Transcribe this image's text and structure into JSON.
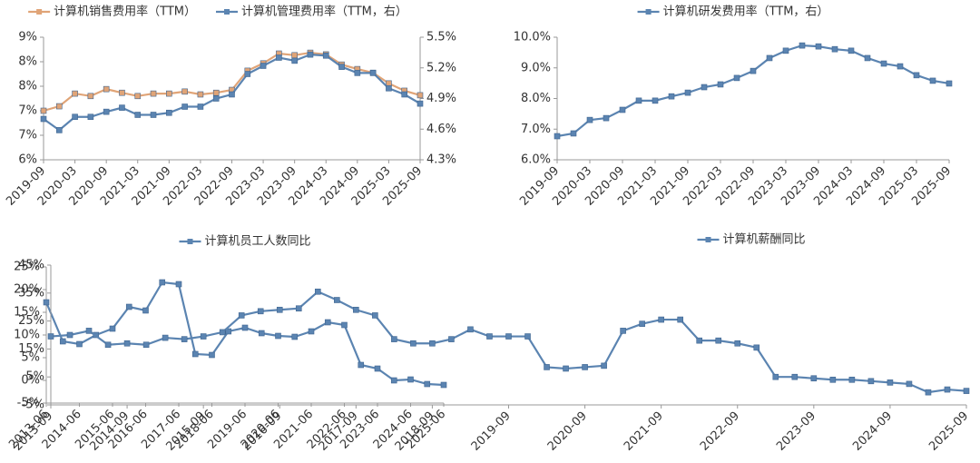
{
  "chart_data": [
    {
      "type": "line",
      "categories": [
        "2019-09",
        null,
        "2020-03",
        null,
        "2020-09",
        null,
        "2021-03",
        null,
        "2021-09",
        null,
        "2022-03",
        null,
        "2022-09",
        null,
        "2023-03",
        null,
        "2023-09",
        null,
        "2024-03",
        null,
        "2024-09",
        null,
        "2025-03",
        null,
        "2025-09"
      ],
      "series": [
        {
          "name": "计算机销售费用率（TTM）",
          "color": "#e0a477",
          "values": [
            7.2,
            7.31,
            7.62,
            7.56,
            7.73,
            7.64,
            7.56,
            7.62,
            7.62,
            7.67,
            7.6,
            7.64,
            7.71,
            8.18,
            8.36,
            8.6,
            8.56,
            8.62,
            8.58,
            8.33,
            8.22,
            8.13,
            7.87,
            7.69,
            7.58
          ]
        },
        {
          "name": "计算机管理费用率（TTM，右）",
          "color": "#5b84b1",
          "axis": "y2",
          "values": [
            4.7,
            4.59,
            4.72,
            4.72,
            4.77,
            4.81,
            4.74,
            4.74,
            4.76,
            4.82,
            4.82,
            4.9,
            4.94,
            5.14,
            5.22,
            5.3,
            5.27,
            5.33,
            5.32,
            5.21,
            5.15,
            5.15,
            5.0,
            4.94,
            4.85
          ]
        }
      ],
      "ylim": [
        6,
        9
      ],
      "yticks": [
        {
          "value": 6,
          "label": "6%"
        },
        {
          "value": 6.6,
          "label": "7%"
        },
        {
          "value": 7.2,
          "label": "7%"
        },
        {
          "value": 7.8,
          "label": "8%"
        },
        {
          "value": 8.4,
          "label": "8%"
        },
        {
          "value": 9,
          "label": "9%"
        }
      ],
      "y2lim": [
        4.3,
        5.5
      ],
      "y2ticks": [
        {
          "value": 4.3,
          "label": "4.3%"
        },
        {
          "value": 4.6,
          "label": "4.6%"
        },
        {
          "value": 4.9,
          "label": "4.9%"
        },
        {
          "value": 5.2,
          "label": "5.2%"
        },
        {
          "value": 5.5,
          "label": "5.5%"
        }
      ],
      "grid": false
    },
    {
      "type": "line",
      "categories": [
        "2019-09",
        null,
        "2020-03",
        null,
        "2020-09",
        null,
        "2021-03",
        null,
        "2021-09",
        null,
        "2022-03",
        null,
        "2022-09",
        null,
        "2023-03",
        null,
        "2023-09",
        null,
        "2024-03",
        null,
        "2024-09",
        null,
        "2025-03",
        null,
        "2025-09"
      ],
      "series": [
        {
          "name": "计算机研发费用率（TTM，右）",
          "color": "#5b84b1",
          "values": [
            6.77,
            6.86,
            7.3,
            7.36,
            7.63,
            7.93,
            7.93,
            8.07,
            8.19,
            8.37,
            8.46,
            8.67,
            8.9,
            9.32,
            9.56,
            9.73,
            9.7,
            9.61,
            9.56,
            9.32,
            9.14,
            9.05,
            8.76,
            8.58,
            8.49
          ]
        }
      ],
      "ylim": [
        6,
        10
      ],
      "yticks": [
        {
          "value": 6,
          "label": "6.0%"
        },
        {
          "value": 7,
          "label": "7.0%"
        },
        {
          "value": 8,
          "label": "8.0%"
        },
        {
          "value": 9,
          "label": "9.0%"
        },
        {
          "value": 10,
          "label": "10.0%"
        }
      ],
      "grid": false
    },
    {
      "type": "line",
      "categories": [
        "2013-06",
        null,
        "2014-06",
        null,
        "2015-06",
        null,
        "2016-06",
        null,
        "2017-06",
        null,
        "2018-06",
        null,
        "2019-06",
        null,
        "2020-06",
        null,
        "2021-06",
        null,
        "2022-06",
        null,
        "2023-06",
        null,
        "2024-06",
        null,
        "2025-06"
      ],
      "series": [
        {
          "name": "计算机员工人数同比",
          "color": "#5b84b1",
          "values": [
            17.2,
            8.6,
            8,
            10,
            11.4,
            16.2,
            15.4,
            21.6,
            21.2,
            5.8,
            5.6,
            10.8,
            11.6,
            10.4,
            9.8,
            9.6,
            10.8,
            12.8,
            12.2,
            3.4,
            2.6,
            0,
            0.2,
            -0.8,
            -1.0
          ]
        }
      ],
      "ylim": [
        -5,
        25
      ],
      "yticks": [
        {
          "value": -5,
          "label": "-5%"
        },
        {
          "value": 0,
          "label": "0%"
        },
        {
          "value": 5,
          "label": "5%"
        },
        {
          "value": 10,
          "label": "10%"
        },
        {
          "value": 15,
          "label": "15%"
        },
        {
          "value": 20,
          "label": "20%"
        },
        {
          "value": 25,
          "label": "25%"
        }
      ],
      "grid": false
    },
    {
      "type": "line",
      "categories": [
        "2013-09",
        null,
        null,
        null,
        "2014-09",
        null,
        null,
        null,
        "2015-09",
        null,
        null,
        null,
        "2016-09",
        null,
        null,
        null,
        "2017-09",
        null,
        null,
        null,
        "2018-09",
        null,
        null,
        null,
        "2019-09",
        null,
        null,
        null,
        "2020-09",
        null,
        null,
        null,
        "2021-09",
        null,
        null,
        null,
        "2022-09",
        null,
        null,
        null,
        "2023-09",
        null,
        null,
        null,
        "2024-09",
        null,
        null,
        null,
        "2025-09"
      ],
      "series": [
        {
          "name": "计算机薪酬同比",
          "color": "#5b84b1",
          "values": [
            19.5,
            20,
            21.5,
            16.5,
            17,
            16.5,
            19,
            18.5,
            19.5,
            21,
            27,
            28.5,
            29,
            29.5,
            35.5,
            32.5,
            29,
            27,
            18.5,
            17,
            17,
            18.5,
            22,
            19.5,
            19.5,
            19.5,
            8.5,
            8,
            8.5,
            9,
            21.5,
            24,
            25.5,
            25.5,
            18,
            18,
            17,
            15.5,
            5,
            5,
            4.5,
            4,
            4,
            3.5,
            3,
            2.5,
            -0.5,
            0.5,
            0
          ]
        }
      ],
      "ylim": [
        -5,
        45
      ],
      "yticks": [
        {
          "value": -5,
          "label": "-5%"
        },
        {
          "value": 5,
          "label": "5%"
        },
        {
          "value": 15,
          "label": "15%"
        },
        {
          "value": 25,
          "label": "25%"
        },
        {
          "value": 35,
          "label": "35%"
        },
        {
          "value": 45,
          "label": "45%"
        }
      ],
      "grid": false
    }
  ]
}
